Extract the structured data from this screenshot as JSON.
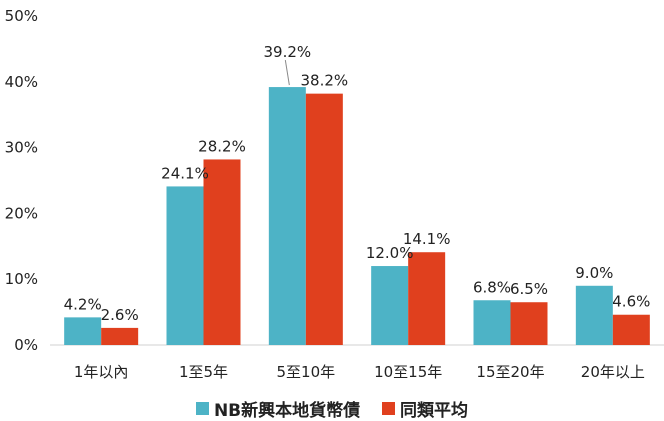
{
  "chart_data": {
    "type": "bar",
    "title": "",
    "xlabel": "",
    "ylabel": "",
    "ylim": [
      0,
      50
    ],
    "yticks": [
      "0%",
      "10%",
      "20%",
      "30%",
      "40%",
      "50%"
    ],
    "ytick_values": [
      0,
      10,
      20,
      30,
      40,
      50
    ],
    "categories": [
      "1年以內",
      "1至5年",
      "5至10年",
      "10至15年",
      "15至20年",
      "20年以上"
    ],
    "series": [
      {
        "name": "NB新興本地貨幣債",
        "color": "#4db3c6",
        "values": [
          4.2,
          24.1,
          39.2,
          12.0,
          6.8,
          9.0
        ],
        "labels": [
          "4.2%",
          "24.1%",
          "39.2%",
          "12.0%",
          "6.8%",
          "9.0%"
        ]
      },
      {
        "name": "同類平均",
        "color": "#e0401e",
        "values": [
          2.6,
          28.2,
          38.2,
          14.1,
          6.5,
          4.6
        ],
        "labels": [
          "2.6%",
          "28.2%",
          "38.2%",
          "14.1%",
          "6.5%",
          "4.6%"
        ]
      }
    ],
    "legend_position": "bottom",
    "grid": false
  }
}
